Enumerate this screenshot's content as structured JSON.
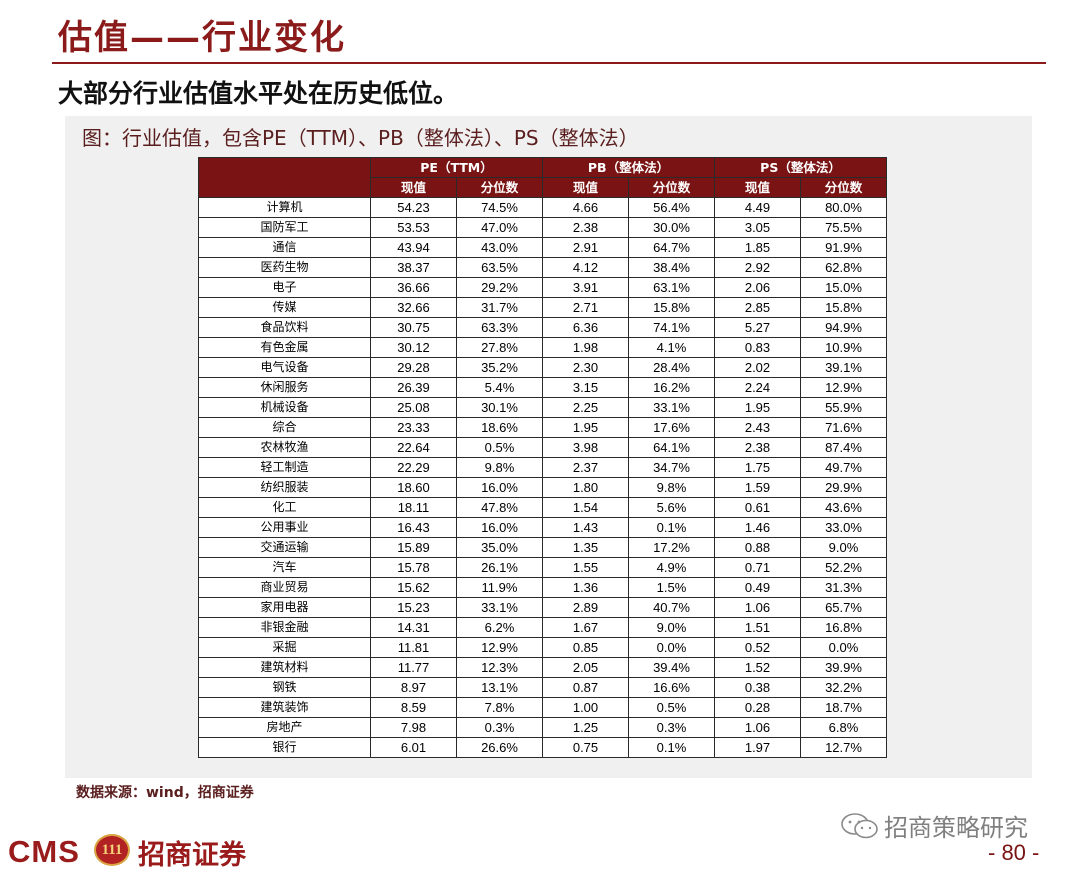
{
  "page": {
    "title": "估值——行业变化",
    "subtitle": "大部分行业估值水平处在历史低位。",
    "figure_caption": "图：行业估值，包含PE（TTM）、PB（整体法）、PS（整体法）",
    "source": "数据来源：wind，招商证券",
    "page_number": "- 80 -"
  },
  "branding": {
    "logo_latin": "CMS",
    "logo_badge": "111",
    "logo_cn": "招商证券",
    "wechat_account": "招商策略研究"
  },
  "colors": {
    "accent": "#8b1a1a",
    "header_bg": "#7a1414",
    "panel_bg": "#f0f0f0"
  },
  "table": {
    "group_headers": [
      "PE（TTM）",
      "PB（整体法）",
      "PS（整体法）"
    ],
    "sub_headers": [
      "现值",
      "分位数",
      "现值",
      "分位数",
      "现值",
      "分位数"
    ],
    "rows": [
      [
        "计算机",
        "54.23",
        "74.5%",
        "4.66",
        "56.4%",
        "4.49",
        "80.0%"
      ],
      [
        "国防军工",
        "53.53",
        "47.0%",
        "2.38",
        "30.0%",
        "3.05",
        "75.5%"
      ],
      [
        "通信",
        "43.94",
        "43.0%",
        "2.91",
        "64.7%",
        "1.85",
        "91.9%"
      ],
      [
        "医药生物",
        "38.37",
        "63.5%",
        "4.12",
        "38.4%",
        "2.92",
        "62.8%"
      ],
      [
        "电子",
        "36.66",
        "29.2%",
        "3.91",
        "63.1%",
        "2.06",
        "15.0%"
      ],
      [
        "传媒",
        "32.66",
        "31.7%",
        "2.71",
        "15.8%",
        "2.85",
        "15.8%"
      ],
      [
        "食品饮料",
        "30.75",
        "63.3%",
        "6.36",
        "74.1%",
        "5.27",
        "94.9%"
      ],
      [
        "有色金属",
        "30.12",
        "27.8%",
        "1.98",
        "4.1%",
        "0.83",
        "10.9%"
      ],
      [
        "电气设备",
        "29.28",
        "35.2%",
        "2.30",
        "28.4%",
        "2.02",
        "39.1%"
      ],
      [
        "休闲服务",
        "26.39",
        "5.4%",
        "3.15",
        "16.2%",
        "2.24",
        "12.9%"
      ],
      [
        "机械设备",
        "25.08",
        "30.1%",
        "2.25",
        "33.1%",
        "1.95",
        "55.9%"
      ],
      [
        "综合",
        "23.33",
        "18.6%",
        "1.95",
        "17.6%",
        "2.43",
        "71.6%"
      ],
      [
        "农林牧渔",
        "22.64",
        "0.5%",
        "3.98",
        "64.1%",
        "2.38",
        "87.4%"
      ],
      [
        "轻工制造",
        "22.29",
        "9.8%",
        "2.37",
        "34.7%",
        "1.75",
        "49.7%"
      ],
      [
        "纺织服装",
        "18.60",
        "16.0%",
        "1.80",
        "9.8%",
        "1.59",
        "29.9%"
      ],
      [
        "化工",
        "18.11",
        "47.8%",
        "1.54",
        "5.6%",
        "0.61",
        "43.6%"
      ],
      [
        "公用事业",
        "16.43",
        "16.0%",
        "1.43",
        "0.1%",
        "1.46",
        "33.0%"
      ],
      [
        "交通运输",
        "15.89",
        "35.0%",
        "1.35",
        "17.2%",
        "0.88",
        "9.0%"
      ],
      [
        "汽车",
        "15.78",
        "26.1%",
        "1.55",
        "4.9%",
        "0.71",
        "52.2%"
      ],
      [
        "商业贸易",
        "15.62",
        "11.9%",
        "1.36",
        "1.5%",
        "0.49",
        "31.3%"
      ],
      [
        "家用电器",
        "15.23",
        "33.1%",
        "2.89",
        "40.7%",
        "1.06",
        "65.7%"
      ],
      [
        "非银金融",
        "14.31",
        "6.2%",
        "1.67",
        "9.0%",
        "1.51",
        "16.8%"
      ],
      [
        "采掘",
        "11.81",
        "12.9%",
        "0.85",
        "0.0%",
        "0.52",
        "0.0%"
      ],
      [
        "建筑材料",
        "11.77",
        "12.3%",
        "2.05",
        "39.4%",
        "1.52",
        "39.9%"
      ],
      [
        "钢铁",
        "8.97",
        "13.1%",
        "0.87",
        "16.6%",
        "0.38",
        "32.2%"
      ],
      [
        "建筑装饰",
        "8.59",
        "7.8%",
        "1.00",
        "0.5%",
        "0.28",
        "18.7%"
      ],
      [
        "房地产",
        "7.98",
        "0.3%",
        "1.25",
        "0.3%",
        "1.06",
        "6.8%"
      ],
      [
        "银行",
        "6.01",
        "26.6%",
        "0.75",
        "0.1%",
        "1.97",
        "12.7%"
      ]
    ]
  }
}
